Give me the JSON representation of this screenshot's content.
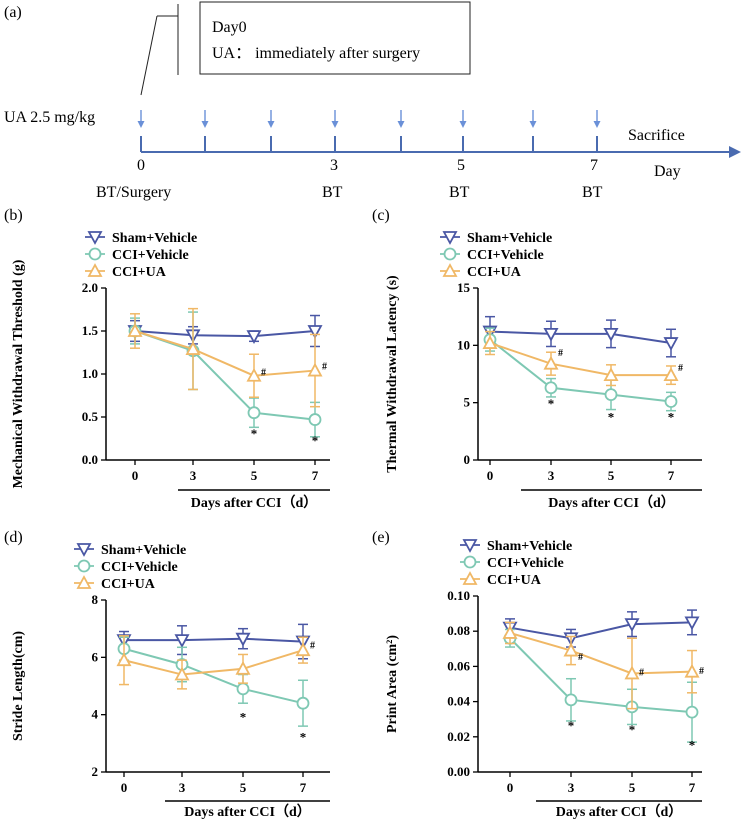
{
  "colors": {
    "sham": "#4a57a4",
    "cci_vehicle": "#7ec8b3",
    "cci_ua": "#f0b866",
    "axis": "#000000",
    "timeline": "#4a6bb0",
    "arrow": "#6a90d8"
  },
  "panel_a": {
    "label": "(a)",
    "box_line1": "Day0",
    "box_line2": "UA：  immediately after surgery",
    "dose_label": "UA   2.5 mg/kg",
    "sacrifice": "Sacrifice",
    "day": "Day",
    "ticks": [
      {
        "num": "0",
        "bt": "BT/Surgery"
      },
      {
        "num": "3",
        "bt": "BT"
      },
      {
        "num": "5",
        "bt": "BT"
      },
      {
        "num": "7",
        "bt": "BT"
      }
    ]
  },
  "chart_data": [
    {
      "panel": "(b)",
      "type": "line",
      "ylabel": "Mechanical Withdrawal Threshold (g)",
      "xlabel": "Days after CCI（d）",
      "x": [
        0,
        3,
        5,
        7
      ],
      "ylim": [
        0,
        2.0
      ],
      "yticks": [
        "0.0",
        "0.5",
        "1.0",
        "1.5",
        "2.0"
      ],
      "ytickvals": [
        0,
        0.5,
        1.0,
        1.5,
        2.0
      ],
      "legend": [
        "Sham+Vehicle",
        "CCI+Vehicle",
        "CCI+UA"
      ],
      "series": [
        {
          "name": "Sham+Vehicle",
          "values": [
            1.5,
            1.45,
            1.44,
            1.5
          ],
          "err": [
            0.12,
            0.1,
            0.06,
            0.18
          ]
        },
        {
          "name": "CCI+Vehicle",
          "values": [
            1.5,
            1.27,
            0.55,
            0.47
          ],
          "err": [
            0.15,
            0.45,
            0.17,
            0.2
          ]
        },
        {
          "name": "CCI+UA",
          "values": [
            1.5,
            1.29,
            0.98,
            1.04
          ],
          "err": [
            0.2,
            0.47,
            0.25,
            0.42
          ]
        }
      ],
      "annotations": [
        {
          "x": 5,
          "y": 0.3,
          "text": "*"
        },
        {
          "x": 7,
          "y": 0.22,
          "text": "*"
        },
        {
          "x": 5,
          "y": 1.03,
          "text": "#"
        },
        {
          "x": 7,
          "y": 1.1,
          "text": "#"
        }
      ]
    },
    {
      "panel": "(c)",
      "type": "line",
      "ylabel": "Thermal Withdrawal Latency (s)",
      "xlabel": "Days after CCI（d）",
      "x": [
        0,
        3,
        5,
        7
      ],
      "ylim": [
        0,
        15
      ],
      "yticks": [
        "0",
        "5",
        "10",
        "15"
      ],
      "ytickvals": [
        0,
        5,
        10,
        15
      ],
      "legend": [
        "Sham+Vehicle",
        "CCI+Vehicle",
        "CCI+UA"
      ],
      "series": [
        {
          "name": "Sham+Vehicle",
          "values": [
            11.2,
            11.0,
            11.0,
            10.2
          ],
          "err": [
            1.3,
            1.1,
            1.2,
            1.2
          ]
        },
        {
          "name": "CCI+Vehicle",
          "values": [
            10.5,
            6.3,
            5.7,
            5.1
          ],
          "err": [
            1.0,
            0.8,
            1.3,
            0.8
          ]
        },
        {
          "name": "CCI+UA",
          "values": [
            10.2,
            8.4,
            7.4,
            7.4
          ],
          "err": [
            1.0,
            1.0,
            0.9,
            0.8
          ]
        }
      ],
      "annotations": [
        {
          "x": 3,
          "y": 4.9,
          "text": "*"
        },
        {
          "x": 5,
          "y": 3.7,
          "text": "*"
        },
        {
          "x": 7,
          "y": 3.7,
          "text": "*"
        },
        {
          "x": 3,
          "y": 9.4,
          "text": "#"
        },
        {
          "x": 7,
          "y": 8.1,
          "text": "#"
        }
      ]
    },
    {
      "panel": "(d)",
      "type": "line",
      "ylabel": "Stride Length(cm)",
      "xlabel": "Days after CCI（d）",
      "x": [
        0,
        3,
        5,
        7
      ],
      "ylim": [
        2,
        8
      ],
      "yticks": [
        "2",
        "4",
        "6",
        "8"
      ],
      "ytickvals": [
        2,
        4,
        6,
        8
      ],
      "legend": [
        "Sham+Vehicle",
        "CCI+Vehicle",
        "CCI+UA"
      ],
      "series": [
        {
          "name": "Sham+Vehicle",
          "values": [
            6.6,
            6.6,
            6.65,
            6.55
          ],
          "err": [
            0.3,
            0.5,
            0.35,
            0.6
          ]
        },
        {
          "name": "CCI+Vehicle",
          "values": [
            6.3,
            5.75,
            4.9,
            4.4
          ],
          "err": [
            0.4,
            0.6,
            0.5,
            0.8
          ]
        },
        {
          "name": "CCI+UA",
          "values": [
            5.9,
            5.4,
            5.6,
            6.25
          ],
          "err": [
            0.85,
            0.5,
            0.5,
            0.45
          ]
        }
      ],
      "annotations": [
        {
          "x": 5,
          "y": 3.9,
          "text": "*"
        },
        {
          "x": 7,
          "y": 3.2,
          "text": "*"
        },
        {
          "x": 7,
          "y": 6.45,
          "text": "#"
        }
      ]
    },
    {
      "panel": "(e)",
      "type": "line",
      "ylabel": "Print Area (cm²)",
      "xlabel": "Days after CCI（d）",
      "x": [
        0,
        3,
        5,
        7
      ],
      "ylim": [
        0,
        0.1
      ],
      "yticks": [
        "0.00",
        "0.02",
        "0.04",
        "0.06",
        "0.08",
        "0.10"
      ],
      "ytickvals": [
        0,
        0.02,
        0.04,
        0.06,
        0.08,
        0.1
      ],
      "legend": [
        "Sham+Vehicle",
        "CCI+Vehicle",
        "CCI+UA"
      ],
      "series": [
        {
          "name": "Sham+Vehicle",
          "values": [
            0.082,
            0.076,
            0.084,
            0.085
          ],
          "err": [
            0.005,
            0.005,
            0.007,
            0.007
          ]
        },
        {
          "name": "CCI+Vehicle",
          "values": [
            0.076,
            0.041,
            0.037,
            0.034
          ],
          "err": [
            0.005,
            0.012,
            0.01,
            0.017
          ]
        },
        {
          "name": "CCI+UA",
          "values": [
            0.079,
            0.069,
            0.056,
            0.057
          ],
          "err": [
            0.006,
            0.008,
            0.02,
            0.012
          ]
        }
      ],
      "annotations": [
        {
          "x": 3,
          "y": 0.026,
          "text": "*"
        },
        {
          "x": 5,
          "y": 0.024,
          "text": "*"
        },
        {
          "x": 7,
          "y": 0.015,
          "text": "*"
        },
        {
          "x": 3,
          "y": 0.066,
          "text": "#"
        },
        {
          "x": 5,
          "y": 0.057,
          "text": "#"
        },
        {
          "x": 7,
          "y": 0.058,
          "text": "#"
        }
      ]
    }
  ]
}
